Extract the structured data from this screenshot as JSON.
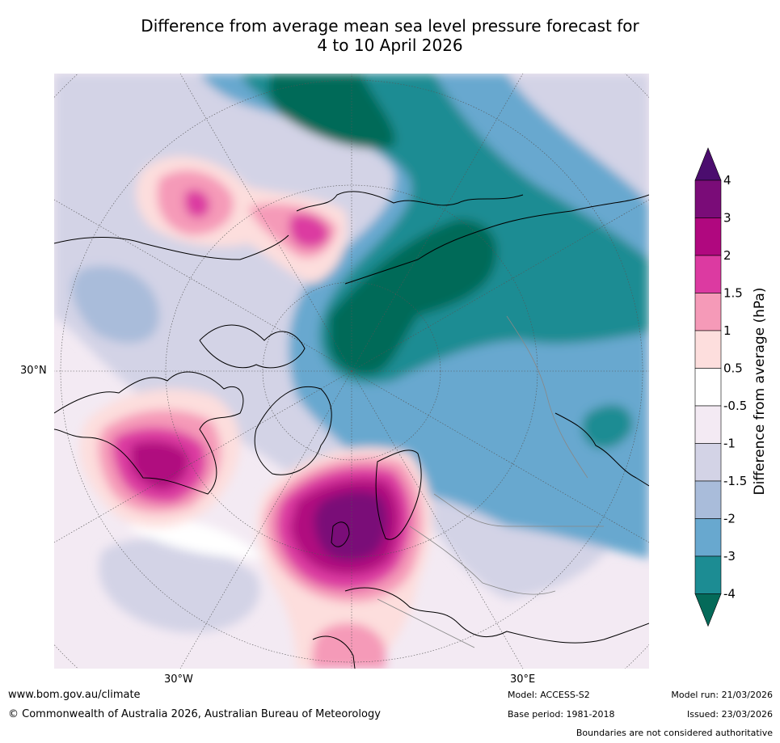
{
  "title": {
    "line1": "Difference from average mean sea level pressure forecast for",
    "line2": "4 to 10 April 2026"
  },
  "map": {
    "lon_labels": [
      "30°W",
      "30°E"
    ],
    "lat_label": "30°N"
  },
  "colorbar": {
    "label": "Difference from average (hPa)",
    "ticks": [
      "4",
      "3",
      "2",
      "1.5",
      "1",
      "0.5",
      "-0.5",
      "-1",
      "-1.5",
      "-2",
      "-3",
      "-4"
    ],
    "colors": [
      "#4b0d6e",
      "#7a0c78",
      "#b0087f",
      "#dc3aa1",
      "#f59ab8",
      "#fddedd",
      "#ffffff",
      "#f3eaf3",
      "#d3d3e6",
      "#a9bcda",
      "#68a8cf",
      "#1c8c93",
      "#046a59"
    ]
  },
  "footer": {
    "url": "www.bom.gov.au/climate",
    "copyright": "© Commonwealth of Australia 2026, Australian Bureau of Meteorology",
    "model": "Model: ACCESS-S2",
    "base_period": "Base period: 1981-2018",
    "model_run": "Model run: 21/03/2026",
    "issued": "Issued: 23/03/2026",
    "disclaimer": "Boundaries are not considered authoritative"
  }
}
